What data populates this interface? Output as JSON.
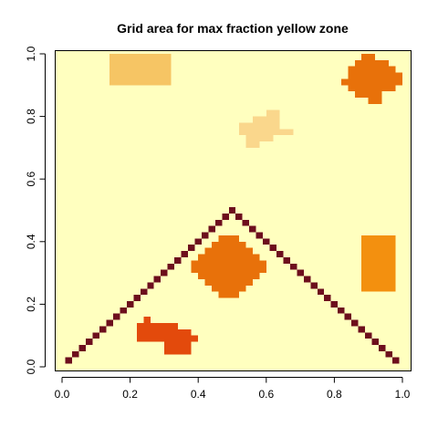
{
  "chart_data": {
    "type": "heatmap",
    "title": "Grid area for max fraction yellow zone",
    "xlabel": "",
    "ylabel": "",
    "xlim": [
      0,
      1
    ],
    "ylim": [
      0,
      1
    ],
    "grid": false,
    "x_ticks": [
      "0.0",
      "0.2",
      "0.4",
      "0.6",
      "0.8",
      "1.0"
    ],
    "y_ticks": [
      "0.0",
      "0.2",
      "0.4",
      "0.6",
      "0.8",
      "1.0"
    ],
    "cell_size": 0.02,
    "colors": {
      "background": "#FFFFBF",
      "light_orange": "#FAD78C",
      "tan": "#F6C564",
      "orange": "#F3900F",
      "dark_orange": "#E8710A",
      "red_orange": "#E34A0C",
      "line": "#6D0E1D"
    },
    "regions": [
      {
        "color": "tan",
        "cells": [
          [
            0.15,
            0.91
          ],
          [
            0.31,
            0.99
          ]
        ]
      },
      {
        "color": "orange",
        "cells": [
          [
            0.89,
            0.25
          ],
          [
            0.97,
            0.41
          ]
        ]
      }
    ],
    "blobs": [
      {
        "color": "dark_orange",
        "rows": [
          {
            "y": 0.85,
            "x0": 0.91,
            "x1": 0.93
          },
          {
            "y": 0.87,
            "x0": 0.87,
            "x1": 0.93
          },
          {
            "y": 0.89,
            "x0": 0.85,
            "x1": 0.97
          },
          {
            "y": 0.91,
            "x0": 0.83,
            "x1": 0.99
          },
          {
            "y": 0.93,
            "x0": 0.85,
            "x1": 0.99
          },
          {
            "y": 0.95,
            "x0": 0.85,
            "x1": 0.97
          },
          {
            "y": 0.97,
            "x0": 0.87,
            "x1": 0.95
          },
          {
            "y": 0.99,
            "x0": 0.89,
            "x1": 0.91
          }
        ]
      },
      {
        "color": "light_orange",
        "rows": [
          {
            "y": 0.71,
            "x0": 0.55,
            "x1": 0.57
          },
          {
            "y": 0.73,
            "x0": 0.55,
            "x1": 0.61
          },
          {
            "y": 0.75,
            "x0": 0.53,
            "x1": 0.67
          },
          {
            "y": 0.77,
            "x0": 0.53,
            "x1": 0.63
          },
          {
            "y": 0.79,
            "x0": 0.57,
            "x1": 0.63
          },
          {
            "y": 0.81,
            "x0": 0.61,
            "x1": 0.63
          }
        ]
      },
      {
        "color": "dark_orange",
        "rows": [
          {
            "y": 0.23,
            "x0": 0.47,
            "x1": 0.51
          },
          {
            "y": 0.25,
            "x0": 0.45,
            "x1": 0.53
          },
          {
            "y": 0.27,
            "x0": 0.43,
            "x1": 0.55
          },
          {
            "y": 0.29,
            "x0": 0.41,
            "x1": 0.57
          },
          {
            "y": 0.31,
            "x0": 0.39,
            "x1": 0.59
          },
          {
            "y": 0.33,
            "x0": 0.39,
            "x1": 0.59
          },
          {
            "y": 0.35,
            "x0": 0.41,
            "x1": 0.57
          },
          {
            "y": 0.37,
            "x0": 0.43,
            "x1": 0.55
          },
          {
            "y": 0.39,
            "x0": 0.45,
            "x1": 0.53
          },
          {
            "y": 0.41,
            "x0": 0.47,
            "x1": 0.51
          }
        ]
      },
      {
        "color": "red_orange",
        "rows": [
          {
            "y": 0.05,
            "x0": 0.31,
            "x1": 0.37
          },
          {
            "y": 0.07,
            "x0": 0.31,
            "x1": 0.37
          },
          {
            "y": 0.09,
            "x0": 0.23,
            "x1": 0.39
          },
          {
            "y": 0.11,
            "x0": 0.23,
            "x1": 0.37
          },
          {
            "y": 0.13,
            "x0": 0.23,
            "x1": 0.33
          },
          {
            "y": 0.15,
            "x0": 0.25,
            "x1": 0.25
          }
        ]
      }
    ],
    "line_series": {
      "name": "",
      "color": "line",
      "x_start": 0.02,
      "x_end": 0.98,
      "step": 0.02,
      "peak_x": 0.5,
      "peak_y": 0.5
    }
  }
}
